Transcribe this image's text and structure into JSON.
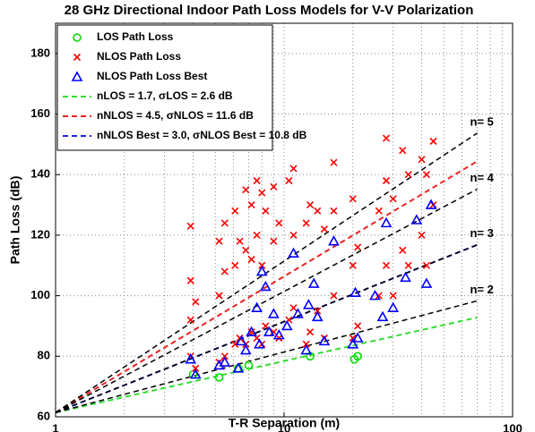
{
  "chart_data": {
    "type": "scatter",
    "title": "28 GHz Directional Indoor Path Loss Models for V-V Polarization",
    "x_label": "T-R Separation (m)",
    "y_label": "Path Loss (dB)",
    "xscale": "log",
    "xlim": [
      1,
      100
    ],
    "ylim": [
      60,
      190
    ],
    "xticks": [
      1,
      10,
      100
    ],
    "xminor_grid": [
      2,
      3,
      4,
      5,
      6,
      7,
      8,
      9,
      20,
      30,
      40,
      50,
      60,
      70,
      80,
      90
    ],
    "yticks": [
      60,
      80,
      100,
      120,
      140,
      160,
      180
    ],
    "grid": true,
    "legend_position": "upper left",
    "series": [
      {
        "name": "LOS Path Loss",
        "kind": "markers",
        "marker": "circle",
        "color": "#00dd00",
        "legend": true,
        "x": [
          4.0,
          5.2,
          6.3,
          7.0,
          13.0,
          20.3,
          21.0
        ],
        "values": [
          74,
          73,
          76,
          77,
          80,
          79,
          80
        ]
      },
      {
        "name": "NLOS Path Loss",
        "kind": "markers",
        "marker": "x",
        "color": "#ff0000",
        "legend": true,
        "x": [
          3.9,
          3.9,
          3.9,
          3.9,
          4.1,
          4.1,
          5.2,
          5.2,
          5.2,
          5.5,
          5.5,
          5.5,
          6.1,
          6.1,
          6.1,
          6.4,
          6.4,
          6.8,
          6.8,
          6.8,
          7.2,
          7.2,
          7.2,
          7.6,
          7.6,
          7.6,
          8.0,
          8.0,
          8.0,
          8.3,
          8.3,
          9.0,
          9.0,
          9.0,
          9.5,
          9.5,
          10.5,
          10.5,
          11.0,
          11.0,
          11.0,
          12.5,
          12.5,
          13.0,
          13.0,
          14.0,
          14.0,
          15.0,
          15.0,
          16.5,
          16.5,
          16.5,
          20.0,
          20.0,
          20.0,
          21.0,
          21.0,
          26.0,
          26.0,
          28.0,
          28.0,
          28.0,
          30.0,
          30.0,
          33.0,
          33.0,
          35.0,
          35.0,
          40.0,
          40.0,
          42.0,
          42.0,
          45.0,
          45.0
        ],
        "values": [
          80,
          92,
          105,
          123,
          76,
          98,
          78,
          100,
          118,
          80,
          108,
          124,
          84,
          110,
          128,
          86,
          118,
          84,
          115,
          135,
          88,
          112,
          130,
          86,
          120,
          138,
          84,
          110,
          134,
          90,
          128,
          88,
          118,
          136,
          86,
          124,
          92,
          138,
          96,
          120,
          142,
          84,
          124,
          88,
          130,
          95,
          128,
          86,
          122,
          100,
          128,
          144,
          86,
          110,
          132,
          90,
          116,
          100,
          128,
          110,
          138,
          152,
          100,
          132,
          115,
          148,
          110,
          140,
          120,
          145,
          110,
          140,
          130,
          151
        ]
      },
      {
        "name": "NLOS Path Loss Best",
        "kind": "markers",
        "marker": "triangle",
        "color": "#0000ff",
        "legend": true,
        "x": [
          3.9,
          4.1,
          5.2,
          5.5,
          6.3,
          6.5,
          6.8,
          7.2,
          7.6,
          7.8,
          8.0,
          8.3,
          8.6,
          9.0,
          9.5,
          10.3,
          11.0,
          11.5,
          12.5,
          12.8,
          13.5,
          14.0,
          15.0,
          16.5,
          20.0,
          20.5,
          21.0,
          25.0,
          27.0,
          28.0,
          30.0,
          34.0,
          38.0,
          42.0,
          44.0
        ],
        "values": [
          79,
          74,
          77,
          78,
          76,
          85,
          82,
          88,
          96,
          84,
          108,
          103,
          88,
          94,
          87,
          90,
          114,
          94,
          82,
          97,
          104,
          93,
          85,
          118,
          84,
          101,
          86,
          100,
          93,
          124,
          96,
          106,
          125,
          104,
          130
        ]
      },
      {
        "name": "nLOS = 1.7, σLOS = 2.6 dB",
        "kind": "line",
        "color": "#33dd33",
        "legend": true,
        "x": [
          1,
          70
        ],
        "values": [
          61.4,
          92.8
        ]
      },
      {
        "name": "nNLOS = 4.5, σNLOS = 11.6 dB",
        "kind": "line",
        "color": "#ee2222",
        "legend": true,
        "x": [
          1,
          70
        ],
        "values": [
          61.4,
          144.4
        ]
      },
      {
        "name": "nNLOS Best = 3.0, σNLOS Best = 10.8 dB",
        "kind": "line",
        "color": "#2222dd",
        "legend": true,
        "x": [
          1,
          70
        ],
        "values": [
          61.4,
          116.8
        ]
      },
      {
        "name": "n= 2",
        "kind": "line",
        "color": "#000000",
        "legend": false,
        "x": [
          1,
          70
        ],
        "values": [
          61.4,
          98.3
        ]
      },
      {
        "name": "n= 3",
        "kind": "line",
        "color": "#000000",
        "legend": false,
        "x": [
          1,
          70
        ],
        "values": [
          61.4,
          116.8
        ]
      },
      {
        "name": "n= 4",
        "kind": "line",
        "color": "#000000",
        "legend": false,
        "x": [
          1,
          70
        ],
        "values": [
          61.4,
          135.2
        ]
      },
      {
        "name": "n= 5",
        "kind": "line",
        "color": "#000000",
        "legend": false,
        "x": [
          1,
          70
        ],
        "values": [
          61.4,
          153.7
        ]
      }
    ]
  }
}
